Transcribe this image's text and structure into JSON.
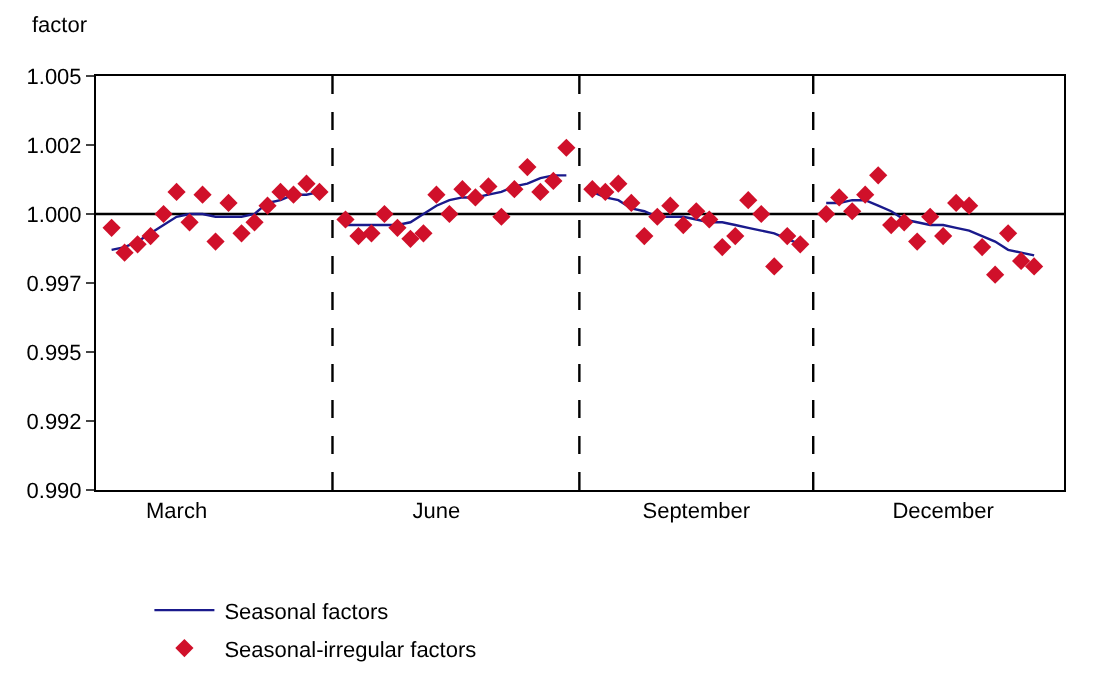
{
  "chart_data": {
    "type": "line",
    "ylabel": "factor",
    "grid": false,
    "legend": "bottom",
    "categories": [
      null,
      null,
      null,
      null,
      null,
      "March",
      null,
      null,
      null,
      null,
      null,
      null,
      null,
      null,
      null,
      null,
      null,
      null,
      null,
      null,
      null,
      null,
      null,
      null,
      null,
      "June",
      null,
      null,
      null,
      null,
      null,
      null,
      null,
      null,
      null,
      null,
      null,
      null,
      null,
      null,
      null,
      null,
      null,
      null,
      null,
      "September",
      null,
      null,
      null,
      null,
      null,
      null,
      null,
      null,
      null,
      null,
      null,
      null,
      null,
      null,
      null,
      null,
      null,
      null,
      "December",
      null,
      null,
      null,
      null,
      null,
      null,
      null
    ],
    "ylim": [
      0.99,
      1.005
    ],
    "yticks": [
      {
        "value": 0.99,
        "label": "0.990"
      },
      {
        "value": 0.9925,
        "label": "0.992"
      },
      {
        "value": 0.995,
        "label": "0.995"
      },
      {
        "value": 0.9975,
        "label": "0.997"
      },
      {
        "value": 1.0,
        "label": "1.000"
      },
      {
        "value": 1.0025,
        "label": "1.002"
      },
      {
        "value": 1.005,
        "label": "1.005"
      }
    ],
    "ref_lines": [
      {
        "axis": "y",
        "value": 1.0,
        "color": "#000000",
        "line_style": "solid"
      }
    ],
    "series": [
      {
        "name": "Seasonal factors",
        "color": "#1a1a8c",
        "marker": "none",
        "line_style": "solid",
        "values": [
          0.9987,
          0.9988,
          0.999,
          0.9993,
          0.9996,
          0.9999,
          1.0,
          1.0,
          0.9999,
          0.9999,
          0.9999,
          1.0,
          1.0004,
          1.0005,
          1.0007,
          1.0007,
          1.0008,
          null,
          0.9996,
          0.9996,
          0.9996,
          0.9996,
          0.9996,
          0.9997,
          1.0,
          1.0003,
          1.0005,
          1.0006,
          1.0006,
          1.0007,
          1.0008,
          1.001,
          1.0011,
          1.0013,
          1.0014,
          1.0014,
          null,
          1.0008,
          1.0006,
          1.0005,
          1.0002,
          1.0001,
          0.9999,
          0.9999,
          0.9999,
          0.9998,
          0.9997,
          0.9997,
          0.9996,
          0.9995,
          0.9994,
          0.9993,
          0.9991,
          0.9989,
          null,
          1.0004,
          1.0004,
          1.0005,
          1.0005,
          1.0003,
          1.0001,
          0.9998,
          0.9997,
          0.9996,
          0.9996,
          0.9995,
          0.9994,
          0.9992,
          0.999,
          0.9987,
          0.9986,
          0.9985
        ]
      },
      {
        "name": "Seasonal-irregular factors",
        "type": "scatter",
        "color": "#d0102a",
        "marker": "diamond",
        "values": [
          0.9995,
          0.9986,
          0.9989,
          0.9992,
          1.0,
          1.0008,
          0.9997,
          1.0007,
          0.999,
          1.0004,
          0.9993,
          0.9997,
          1.0003,
          1.0008,
          1.0007,
          1.0011,
          1.0008,
          null,
          0.9998,
          0.9992,
          0.9993,
          1.0,
          0.9995,
          0.9991,
          0.9993,
          1.0007,
          1.0,
          1.0009,
          1.0006,
          1.001,
          0.9999,
          1.0009,
          1.0017,
          1.0008,
          1.0012,
          1.0024,
          null,
          1.0009,
          1.0008,
          1.0011,
          1.0004,
          0.9992,
          0.9999,
          1.0003,
          0.9996,
          1.0001,
          0.9998,
          0.9988,
          0.9992,
          1.0005,
          1.0,
          0.9981,
          0.9992,
          0.9989,
          null,
          1.0,
          1.0006,
          1.0001,
          1.0007,
          1.0014,
          0.9996,
          0.9997,
          0.999,
          0.9999,
          0.9992,
          1.0004,
          1.0003,
          0.9988,
          0.9978,
          0.9993,
          0.9983,
          0.9981
        ]
      }
    ]
  }
}
